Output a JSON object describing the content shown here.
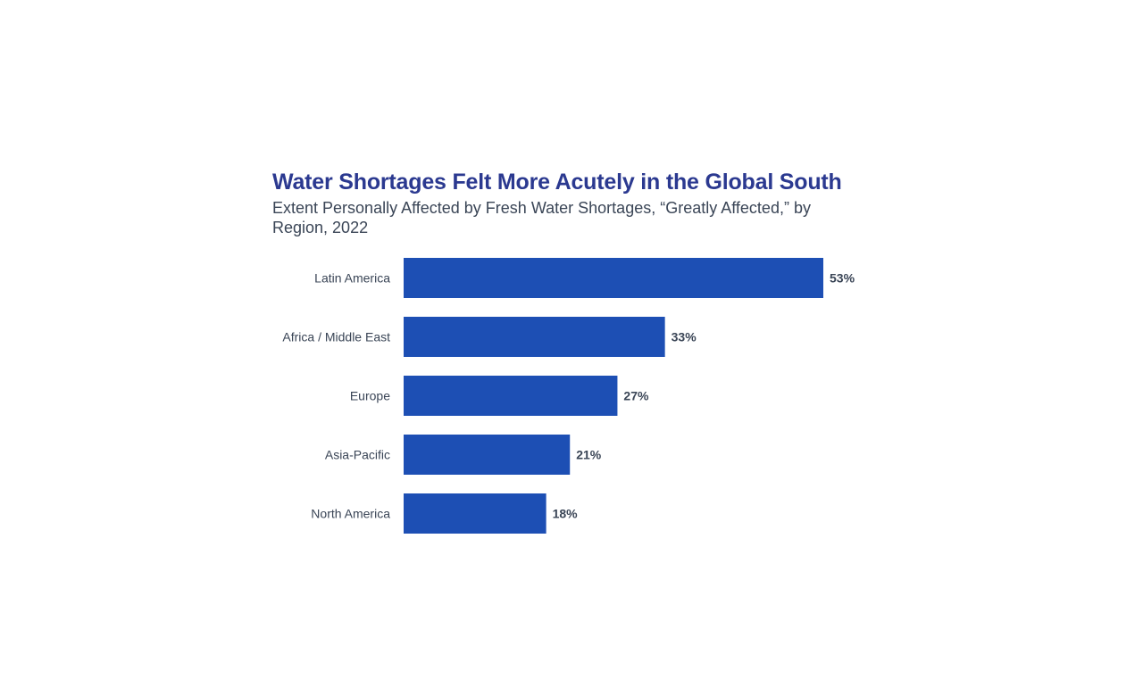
{
  "chart_data": {
    "type": "bar",
    "orientation": "horizontal",
    "title": "Water Shortages Felt More Acutely in the Global South",
    "subtitle": "Extent Personally Affected by Fresh Water Shortages, “Greatly Affected,” by Region, 2022",
    "categories": [
      "Latin America",
      "Africa / Middle East",
      "Europe",
      "Asia-Pacific",
      "North America"
    ],
    "values": [
      53,
      33,
      27,
      21,
      18
    ],
    "value_labels": [
      "53%",
      "33%",
      "27%",
      "21%",
      "18%"
    ],
    "xlim": [
      0,
      53
    ],
    "grid": false,
    "colors": {
      "bar": "#1d4fb4",
      "title": "#2b3990",
      "text": "#3a4556"
    }
  }
}
